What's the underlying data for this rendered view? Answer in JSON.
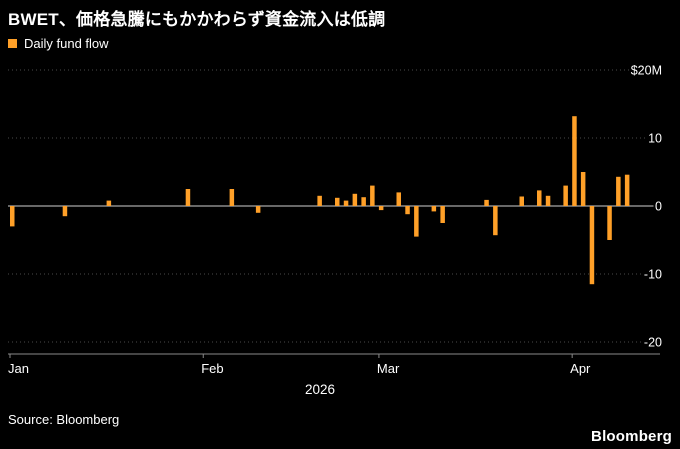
{
  "title": "BWET、価格急騰にもかかわらず資金流入は低調",
  "legend": {
    "label": "Daily fund flow",
    "color": "#FFA028"
  },
  "source": "Source: Bloomberg",
  "brand": "Bloomberg",
  "colors": {
    "background": "#000000",
    "bar": "#FFA028",
    "grid": "#4a4a4a",
    "zero_line": "#d0d0d0",
    "axis": "#8a8a8a",
    "text": "#ffffff"
  },
  "chart_data": {
    "type": "bar",
    "title": "BWET、価格急騰にもかかわらず資金流入は低調",
    "legend": "Daily fund flow",
    "xlabel": "",
    "ylabel": "Daily fund flow ($M)",
    "x_caption": "2026",
    "ylim": [
      -20,
      20
    ],
    "grid": true,
    "legend_position": "top-left",
    "bar_color": "#FFA028",
    "yticks": [
      {
        "value": 20,
        "label": "$20M"
      },
      {
        "value": 10,
        "label": "10"
      },
      {
        "value": 0,
        "label": "0"
      },
      {
        "value": -10,
        "label": "-10"
      },
      {
        "value": -20,
        "label": "-20"
      }
    ],
    "month_ticks": [
      {
        "index": 0,
        "label": "Jan"
      },
      {
        "index": 22,
        "label": "Feb"
      },
      {
        "index": 42,
        "label": "Mar"
      },
      {
        "index": 64,
        "label": "Apr"
      }
    ],
    "x_unit": "business-day index, Jan–Apr 2026",
    "values": [
      -3,
      0,
      0,
      0,
      0,
      0,
      -1.5,
      0,
      0,
      0,
      0,
      0.8,
      0,
      0,
      0,
      0,
      0,
      0,
      0,
      0,
      2.5,
      0,
      0,
      0,
      0,
      2.5,
      0,
      0,
      -1,
      0,
      0,
      0,
      0,
      0,
      0,
      1.5,
      0,
      1.2,
      0.8,
      1.8,
      1.3,
      3,
      -0.6,
      0,
      2,
      -1.2,
      -4.5,
      0,
      -0.8,
      -2.5,
      0,
      0,
      0,
      0,
      0.9,
      -4.3,
      0,
      0,
      1.4,
      0,
      2.3,
      1.5,
      0,
      3,
      13.2,
      5,
      -11.5,
      0,
      -5,
      4.3,
      4.6,
      0,
      0,
      0
    ]
  }
}
